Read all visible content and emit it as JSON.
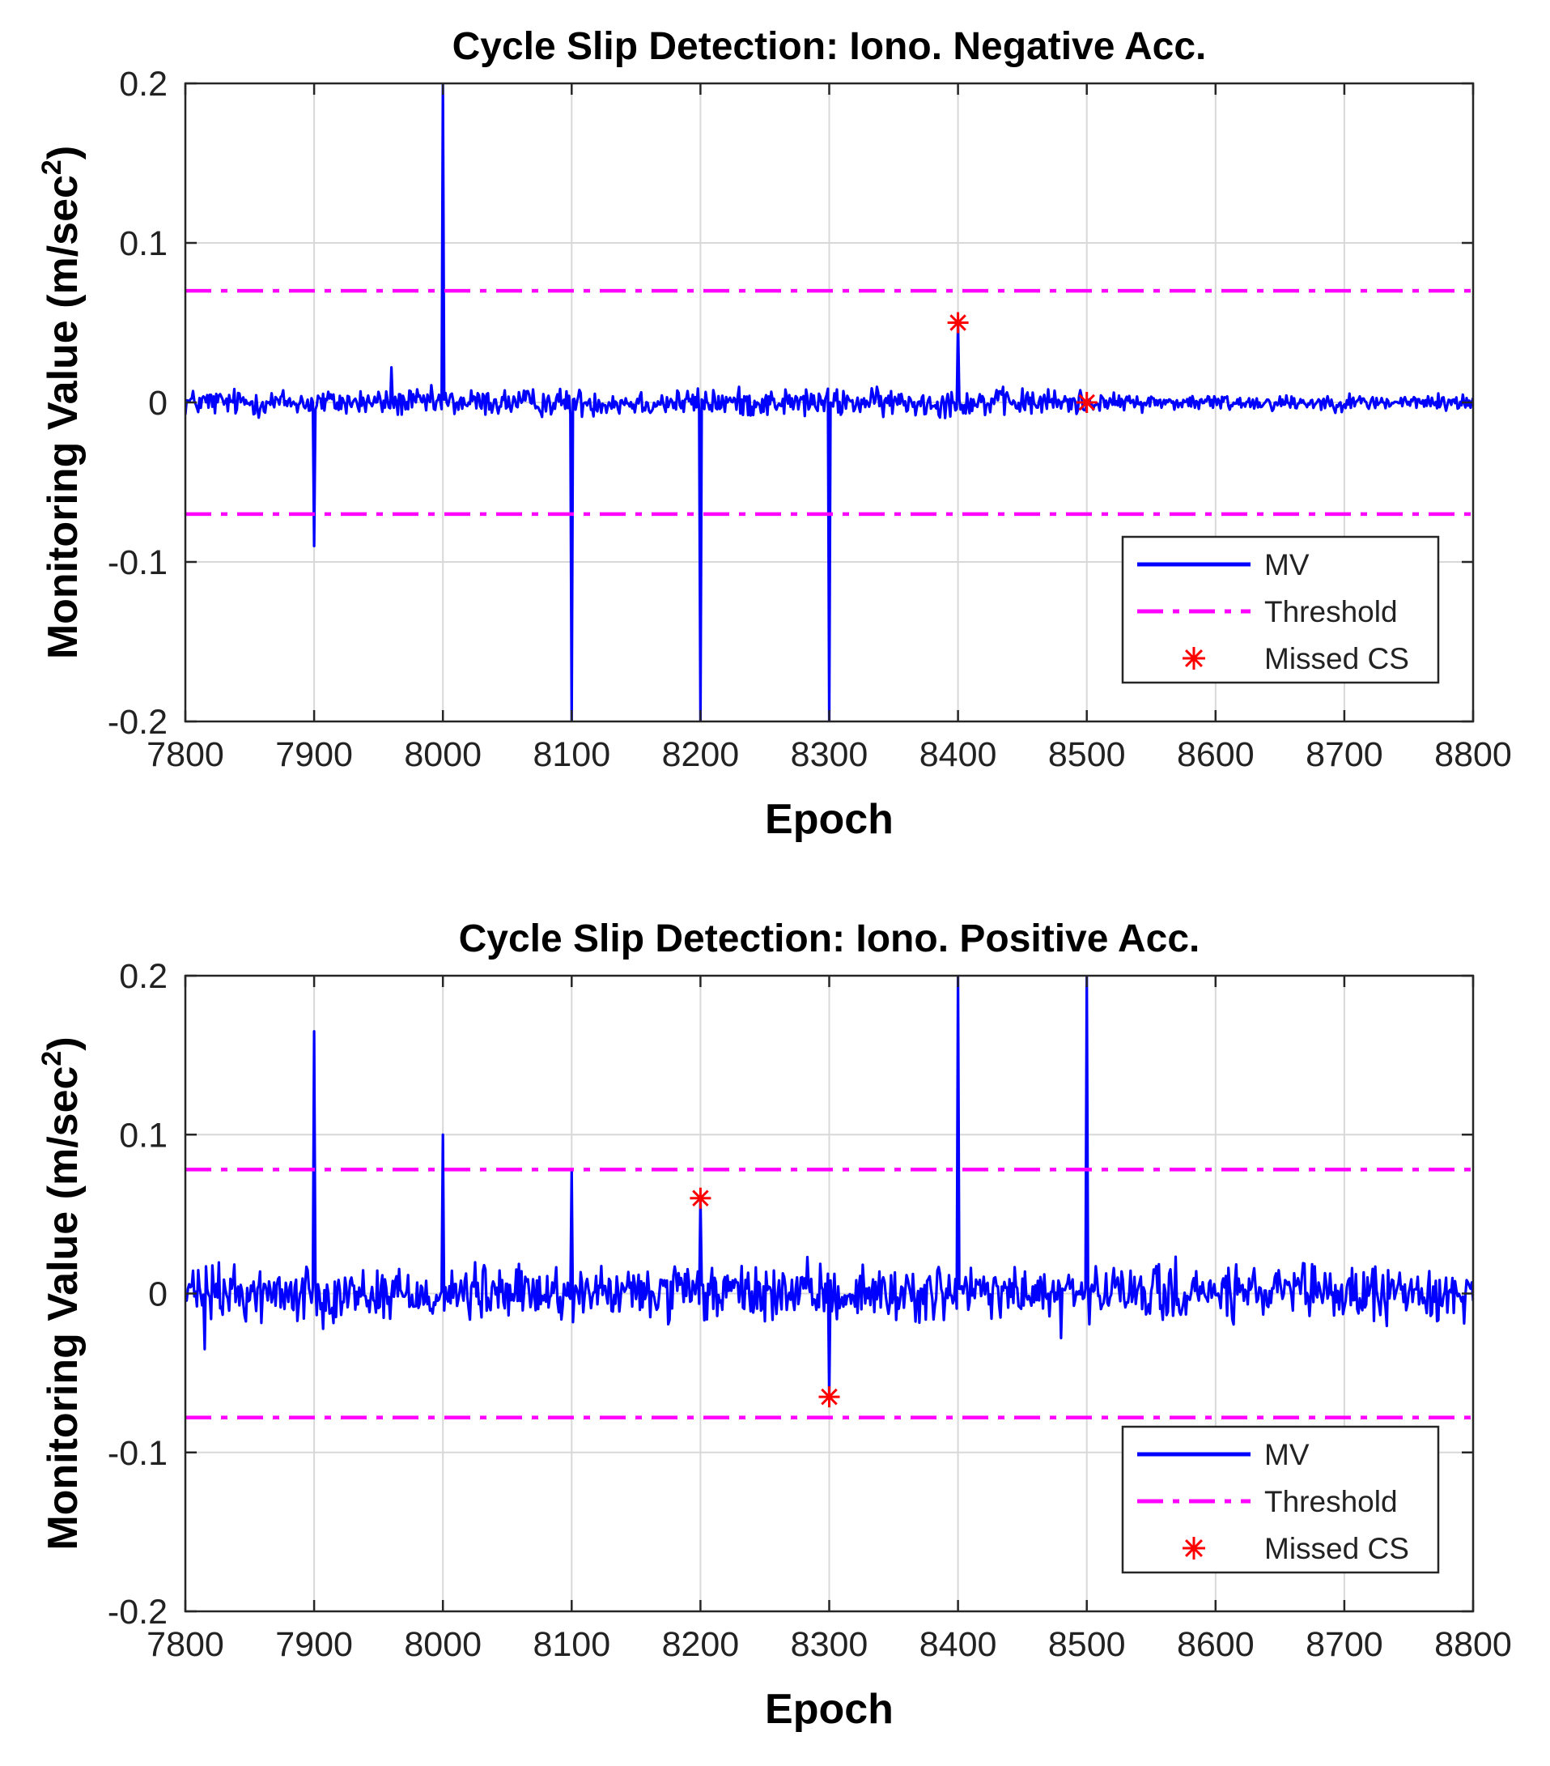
{
  "chart_data": [
    {
      "type": "line",
      "title": "Cycle Slip Detection: Iono. Negative Acc.",
      "xlabel": "Epoch",
      "ylabel": "Monitoring Value (m/sec",
      "ylabel_sup": "2",
      "ylabel_close": ")",
      "xlim": [
        7800,
        8800
      ],
      "ylim": [
        -0.2,
        0.2
      ],
      "grid": true,
      "x_ticks": [
        7800,
        7900,
        8000,
        8100,
        8200,
        8300,
        8400,
        8500,
        8600,
        8700,
        8800
      ],
      "y_ticks": [
        0.2,
        0.1,
        0,
        -0.1,
        -0.2
      ],
      "x_tick_labels": [
        "7800",
        "7900",
        "8000",
        "8100",
        "8200",
        "8300",
        "8400",
        "8500",
        "8600",
        "8700",
        "8800"
      ],
      "y_tick_labels": [
        "0.2",
        "0.1",
        "0",
        "-0.1",
        "-0.2"
      ],
      "noise_amplitude": 0.006,
      "spikes": [
        {
          "x": 7900,
          "y": -0.09
        },
        {
          "x": 7960,
          "y": 0.022
        },
        {
          "x": 8000,
          "y": 0.2
        },
        {
          "x": 8100,
          "y": -0.2
        },
        {
          "x": 8200,
          "y": -0.2
        },
        {
          "x": 8300,
          "y": -0.2
        },
        {
          "x": 8400,
          "y": 0.05
        }
      ],
      "series": [
        {
          "name": "MV",
          "color": "#0000ff",
          "style": "solid"
        },
        {
          "name": "Threshold",
          "color": "#ff00ff",
          "style": "dash-dot",
          "values": [
            0.07,
            -0.07
          ]
        },
        {
          "name": "Missed CS",
          "color": "#ff0000",
          "style": "asterisk",
          "points": [
            {
              "x": 8400,
              "y": 0.05
            },
            {
              "x": 8500,
              "y": 0.0
            }
          ]
        }
      ],
      "legend": {
        "placement": "bottom-right",
        "entries": [
          "MV",
          "Threshold",
          "Missed CS"
        ]
      }
    },
    {
      "type": "line",
      "title": "Cycle Slip Detection: Iono. Positive Acc.",
      "xlabel": "Epoch",
      "ylabel": "Monitoring Value (m/sec",
      "ylabel_sup": "2",
      "ylabel_close": ")",
      "xlim": [
        7800,
        8800
      ],
      "ylim": [
        -0.2,
        0.2
      ],
      "grid": true,
      "x_ticks": [
        7800,
        7900,
        8000,
        8100,
        8200,
        8300,
        8400,
        8500,
        8600,
        8700,
        8800
      ],
      "y_ticks": [
        0.2,
        0.1,
        0,
        -0.1,
        -0.2
      ],
      "x_tick_labels": [
        "7800",
        "7900",
        "8000",
        "8100",
        "8200",
        "8300",
        "8400",
        "8500",
        "8600",
        "8700",
        "8800"
      ],
      "y_tick_labels": [
        "0.2",
        "0.1",
        "0",
        "-0.1",
        "-0.2"
      ],
      "noise_amplitude": 0.012,
      "spikes": [
        {
          "x": 7815,
          "y": -0.035
        },
        {
          "x": 7900,
          "y": 0.165
        },
        {
          "x": 8000,
          "y": 0.1
        },
        {
          "x": 8100,
          "y": 0.078
        },
        {
          "x": 8200,
          "y": 0.06
        },
        {
          "x": 8300,
          "y": -0.065
        },
        {
          "x": 8400,
          "y": 0.2
        },
        {
          "x": 8480,
          "y": -0.028
        },
        {
          "x": 8500,
          "y": 0.2
        }
      ],
      "series": [
        {
          "name": "MV",
          "color": "#0000ff",
          "style": "solid"
        },
        {
          "name": "Threshold",
          "color": "#ff00ff",
          "style": "dash-dot",
          "values": [
            0.078,
            -0.078
          ]
        },
        {
          "name": "Missed CS",
          "color": "#ff0000",
          "style": "asterisk",
          "points": [
            {
              "x": 8200,
              "y": 0.06
            },
            {
              "x": 8300,
              "y": -0.065
            }
          ]
        }
      ],
      "legend": {
        "placement": "bottom-right",
        "entries": [
          "MV",
          "Threshold",
          "Missed CS"
        ]
      }
    }
  ]
}
